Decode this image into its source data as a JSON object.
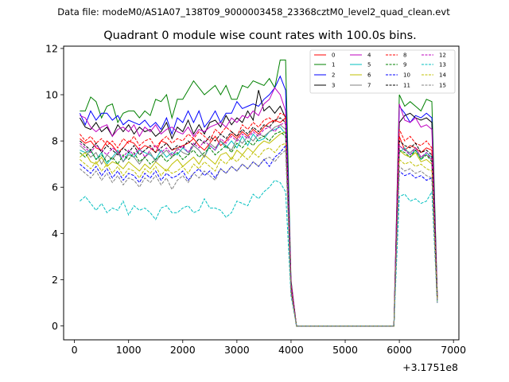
{
  "chart_data": {
    "type": "line",
    "header": "Data file: modeM0/AS1A07_138T09_9000003458_23368cztM0_level2_quad_clean.evt",
    "title": "Quadrant 0 module wise count rates with 100.0s bins.",
    "xlabel": "",
    "ylabel": "",
    "x_offset_label": "+3.1751e8",
    "xlim": [
      -200,
      7100
    ],
    "ylim": [
      -0.6,
      12.1
    ],
    "xticks": [
      0,
      1000,
      2000,
      3000,
      4000,
      5000,
      6000,
      7000
    ],
    "yticks": [
      0,
      2,
      4,
      6,
      8,
      10,
      12
    ],
    "grid": false,
    "legend_position": "top-right",
    "x": [
      100,
      200,
      300,
      400,
      500,
      600,
      700,
      800,
      900,
      1000,
      1100,
      1200,
      1300,
      1400,
      1500,
      1600,
      1700,
      1800,
      1900,
      2000,
      2100,
      2200,
      2300,
      2400,
      2500,
      2600,
      2700,
      2800,
      2900,
      3000,
      3100,
      3200,
      3300,
      3400,
      3500,
      3600,
      3700,
      3800,
      3900,
      4000,
      4100,
      4200,
      4300,
      4400,
      4500,
      4600,
      4700,
      4800,
      4900,
      5000,
      5100,
      5200,
      5300,
      5400,
      5500,
      5600,
      5700,
      5800,
      5900,
      6000,
      6100,
      6200,
      6300,
      6400,
      6500,
      6600,
      6700
    ],
    "series": [
      {
        "name": "0",
        "color": "#ff0000",
        "dash": "solid",
        "values": [
          8.1,
          7.9,
          8.0,
          7.7,
          7.6,
          8.0,
          7.8,
          7.5,
          7.7,
          8.0,
          7.9,
          7.6,
          7.8,
          7.7,
          7.5,
          8.0,
          7.9,
          7.6,
          7.7,
          7.8,
          7.9,
          8.1,
          7.8,
          7.6,
          7.9,
          8.2,
          7.8,
          8.0,
          8.3,
          8.1,
          8.4,
          8.2,
          8.5,
          8.3,
          8.6,
          8.8,
          8.9,
          8.8,
          9.0,
          1.8,
          0.0,
          0.0,
          0.0,
          0.0,
          0.0,
          0.0,
          0.0,
          0.0,
          0.0,
          0.0,
          0.0,
          0.0,
          0.0,
          0.0,
          0.0,
          0.0,
          0.0,
          0.0,
          0.0,
          8.2,
          7.6,
          7.8,
          7.7,
          7.5,
          7.7,
          7.6,
          1.2
        ]
      },
      {
        "name": "1",
        "color": "#008000",
        "dash": "solid",
        "values": [
          9.3,
          9.3,
          9.9,
          9.7,
          9.0,
          9.5,
          9.6,
          8.8,
          9.2,
          9.3,
          9.3,
          9.0,
          9.3,
          9.1,
          9.8,
          9.7,
          10.0,
          9.0,
          9.8,
          9.8,
          10.2,
          10.6,
          10.3,
          10.0,
          10.2,
          10.4,
          10.0,
          10.4,
          9.8,
          9.8,
          10.4,
          10.3,
          10.6,
          10.5,
          10.4,
          10.7,
          10.3,
          11.5,
          11.5,
          2.0,
          0.0,
          0.0,
          0.0,
          0.0,
          0.0,
          0.0,
          0.0,
          0.0,
          0.0,
          0.0,
          0.0,
          0.0,
          0.0,
          0.0,
          0.0,
          0.0,
          0.0,
          0.0,
          0.0,
          10.0,
          9.5,
          9.7,
          9.5,
          9.3,
          9.8,
          9.7,
          1.4
        ]
      },
      {
        "name": "2",
        "color": "#0000ff",
        "dash": "solid",
        "values": [
          9.2,
          8.7,
          9.3,
          8.9,
          9.2,
          9.2,
          8.9,
          9.1,
          8.7,
          8.9,
          8.8,
          8.7,
          8.9,
          8.6,
          8.8,
          8.5,
          9.0,
          8.3,
          9.0,
          8.8,
          9.3,
          8.8,
          9.3,
          8.6,
          8.9,
          9.3,
          8.8,
          9.2,
          9.2,
          9.7,
          9.4,
          9.5,
          9.6,
          9.5,
          9.8,
          10.0,
          10.3,
          10.8,
          10.2,
          1.9,
          0.0,
          0.0,
          0.0,
          0.0,
          0.0,
          0.0,
          0.0,
          0.0,
          0.0,
          0.0,
          0.0,
          0.0,
          0.0,
          0.0,
          0.0,
          0.0,
          0.0,
          0.0,
          0.0,
          9.5,
          9.2,
          8.8,
          9.1,
          9.0,
          9.2,
          9.0,
          1.3
        ]
      },
      {
        "name": "3",
        "color": "#000000",
        "dash": "solid",
        "values": [
          9.0,
          8.6,
          8.5,
          8.8,
          8.4,
          8.6,
          8.2,
          8.7,
          8.4,
          8.7,
          8.3,
          8.6,
          8.4,
          8.5,
          8.2,
          8.4,
          8.8,
          8.1,
          8.6,
          8.4,
          8.9,
          8.3,
          8.7,
          8.3,
          8.8,
          8.9,
          8.6,
          9.1,
          8.7,
          9.0,
          8.8,
          9.3,
          8.9,
          10.2,
          9.3,
          9.5,
          9.2,
          9.5,
          9.0,
          1.8,
          0.0,
          0.0,
          0.0,
          0.0,
          0.0,
          0.0,
          0.0,
          0.0,
          0.0,
          0.0,
          0.0,
          0.0,
          0.0,
          0.0,
          0.0,
          0.0,
          0.0,
          0.0,
          0.0,
          8.8,
          9.1,
          9.2,
          9.0,
          8.9,
          9.0,
          8.8,
          1.2
        ]
      },
      {
        "name": "4",
        "color": "#bf00bf",
        "dash": "solid",
        "values": [
          9.1,
          9.0,
          8.6,
          8.4,
          8.6,
          8.7,
          8.2,
          8.5,
          8.6,
          8.4,
          8.7,
          8.2,
          8.6,
          8.4,
          8.7,
          8.3,
          8.5,
          8.6,
          8.4,
          8.3,
          8.6,
          8.2,
          8.5,
          8.4,
          8.6,
          8.7,
          8.8,
          8.6,
          9.0,
          8.8,
          9.1,
          9.0,
          9.3,
          9.1,
          9.6,
          9.8,
          10.3,
          10.0,
          9.3,
          1.9,
          0.0,
          0.0,
          0.0,
          0.0,
          0.0,
          0.0,
          0.0,
          0.0,
          0.0,
          0.0,
          0.0,
          0.0,
          0.0,
          0.0,
          0.0,
          0.0,
          0.0,
          0.0,
          0.0,
          9.6,
          8.9,
          8.8,
          9.0,
          8.6,
          8.7,
          8.5,
          1.3
        ]
      },
      {
        "name": "5",
        "color": "#00bfbf",
        "dash": "solid",
        "values": [
          7.6,
          7.5,
          7.6,
          7.2,
          7.5,
          7.0,
          7.3,
          7.6,
          7.1,
          7.5,
          7.3,
          7.6,
          7.5,
          7.4,
          7.2,
          7.6,
          7.3,
          7.5,
          7.4,
          7.7,
          7.5,
          7.8,
          7.6,
          7.3,
          7.8,
          7.6,
          8.0,
          7.7,
          8.0,
          7.7,
          8.2,
          7.8,
          8.3,
          8.0,
          8.1,
          8.4,
          8.5,
          8.6,
          8.3,
          1.6,
          0.0,
          0.0,
          0.0,
          0.0,
          0.0,
          0.0,
          0.0,
          0.0,
          0.0,
          0.0,
          0.0,
          0.0,
          0.0,
          0.0,
          0.0,
          0.0,
          0.0,
          0.0,
          0.0,
          7.5,
          7.7,
          7.4,
          7.6,
          7.2,
          7.5,
          7.3,
          1.1
        ]
      },
      {
        "name": "6",
        "color": "#bfbf00",
        "dash": "solid",
        "values": [
          7.3,
          7.5,
          7.1,
          7.0,
          7.3,
          6.9,
          7.1,
          7.0,
          6.8,
          7.1,
          6.9,
          6.7,
          7.0,
          6.8,
          7.1,
          6.9,
          6.7,
          7.0,
          7.2,
          6.9,
          7.1,
          7.3,
          7.0,
          7.4,
          7.2,
          7.0,
          7.4,
          7.5,
          7.2,
          7.6,
          7.4,
          7.7,
          7.5,
          7.8,
          8.0,
          7.9,
          8.1,
          8.3,
          8.4,
          1.6,
          0.0,
          0.0,
          0.0,
          0.0,
          0.0,
          0.0,
          0.0,
          0.0,
          0.0,
          0.0,
          0.0,
          0.0,
          0.0,
          0.0,
          0.0,
          0.0,
          0.0,
          0.0,
          0.0,
          7.6,
          7.4,
          7.3,
          7.5,
          7.1,
          7.2,
          7.0,
          1.2
        ]
      },
      {
        "name": "7",
        "color": "#808080",
        "dash": "solid",
        "values": [
          7.8,
          7.6,
          7.3,
          7.5,
          7.0,
          7.4,
          7.2,
          7.5,
          7.1,
          7.4,
          7.3,
          7.0,
          7.3,
          7.5,
          7.1,
          7.4,
          7.6,
          7.3,
          7.7,
          7.5,
          7.4,
          7.8,
          7.6,
          7.3,
          7.9,
          7.7,
          8.0,
          7.8,
          7.6,
          8.1,
          7.9,
          8.2,
          8.0,
          8.3,
          8.2,
          8.4,
          8.6,
          8.7,
          8.5,
          1.6,
          0.0,
          0.0,
          0.0,
          0.0,
          0.0,
          0.0,
          0.0,
          0.0,
          0.0,
          0.0,
          0.0,
          0.0,
          0.0,
          0.0,
          0.0,
          0.0,
          0.0,
          0.0,
          0.0,
          7.8,
          7.6,
          7.5,
          7.7,
          7.3,
          7.4,
          7.2,
          1.1
        ]
      },
      {
        "name": "8",
        "color": "#ff0000",
        "dash": "dashed",
        "values": [
          8.3,
          8.0,
          8.2,
          7.9,
          8.1,
          7.8,
          8.0,
          7.7,
          8.1,
          7.9,
          8.2,
          7.8,
          8.0,
          8.1,
          7.7,
          8.0,
          8.2,
          7.9,
          8.1,
          8.0,
          8.3,
          8.1,
          8.4,
          8.2,
          8.0,
          8.5,
          8.3,
          8.6,
          8.4,
          8.2,
          8.7,
          8.5,
          8.8,
          8.6,
          8.9,
          9.0,
          8.8,
          9.2,
          9.1,
          1.8,
          0.0,
          0.0,
          0.0,
          0.0,
          0.0,
          0.0,
          0.0,
          0.0,
          0.0,
          0.0,
          0.0,
          0.0,
          0.0,
          0.0,
          0.0,
          0.0,
          0.0,
          0.0,
          0.0,
          8.5,
          8.0,
          8.2,
          7.9,
          7.8,
          8.0,
          7.7,
          1.2
        ]
      },
      {
        "name": "9",
        "color": "#008000",
        "dash": "dashed",
        "values": [
          7.5,
          7.3,
          7.6,
          7.2,
          7.4,
          7.1,
          7.3,
          7.0,
          7.4,
          7.2,
          7.5,
          7.1,
          7.3,
          7.0,
          7.2,
          7.4,
          7.1,
          7.3,
          7.5,
          7.2,
          7.4,
          7.6,
          7.3,
          7.5,
          7.7,
          7.4,
          7.6,
          7.8,
          7.5,
          7.9,
          7.7,
          8.0,
          7.8,
          8.1,
          8.2,
          8.0,
          8.3,
          8.4,
          8.2,
          1.6,
          0.0,
          0.0,
          0.0,
          0.0,
          0.0,
          0.0,
          0.0,
          0.0,
          0.0,
          0.0,
          0.0,
          0.0,
          0.0,
          0.0,
          0.0,
          0.0,
          0.0,
          0.0,
          0.0,
          7.6,
          7.5,
          7.3,
          7.6,
          7.2,
          7.4,
          7.1,
          1.1
        ]
      },
      {
        "name": "10",
        "color": "#0000ff",
        "dash": "dashed",
        "values": [
          7.0,
          6.8,
          6.6,
          6.9,
          6.5,
          6.8,
          6.4,
          6.7,
          6.3,
          6.6,
          6.5,
          6.2,
          6.6,
          6.4,
          6.7,
          6.3,
          6.6,
          6.4,
          6.5,
          6.7,
          6.3,
          6.6,
          6.8,
          6.5,
          6.7,
          6.4,
          6.8,
          6.6,
          6.9,
          6.7,
          7.0,
          6.8,
          7.1,
          6.9,
          7.2,
          6.9,
          7.3,
          7.5,
          7.8,
          1.5,
          0.0,
          0.0,
          0.0,
          0.0,
          0.0,
          0.0,
          0.0,
          0.0,
          0.0,
          0.0,
          0.0,
          0.0,
          0.0,
          0.0,
          0.0,
          0.0,
          0.0,
          0.0,
          0.0,
          6.7,
          6.5,
          6.6,
          6.4,
          6.5,
          6.3,
          6.4,
          1.0
        ]
      },
      {
        "name": "11",
        "color": "#000000",
        "dash": "dashed",
        "values": [
          8.0,
          7.8,
          7.6,
          7.9,
          7.5,
          7.8,
          7.6,
          7.4,
          7.7,
          7.5,
          7.8,
          7.4,
          7.6,
          7.8,
          7.5,
          7.7,
          7.9,
          7.6,
          7.8,
          7.7,
          8.0,
          7.8,
          8.1,
          7.9,
          8.2,
          8.0,
          8.3,
          8.1,
          8.4,
          8.2,
          8.5,
          8.3,
          8.6,
          8.4,
          8.7,
          8.6,
          8.9,
          9.0,
          8.8,
          1.7,
          0.0,
          0.0,
          0.0,
          0.0,
          0.0,
          0.0,
          0.0,
          0.0,
          0.0,
          0.0,
          0.0,
          0.0,
          0.0,
          0.0,
          0.0,
          0.0,
          0.0,
          0.0,
          0.0,
          8.0,
          7.8,
          7.7,
          7.9,
          7.5,
          7.6,
          7.4,
          1.2
        ]
      },
      {
        "name": "12",
        "color": "#bf00bf",
        "dash": "dashed",
        "values": [
          7.9,
          7.7,
          7.5,
          7.8,
          7.6,
          7.4,
          7.7,
          7.5,
          7.3,
          7.6,
          7.4,
          7.7,
          7.3,
          7.6,
          7.8,
          7.5,
          7.7,
          7.4,
          7.6,
          7.8,
          7.5,
          7.9,
          7.7,
          8.0,
          7.8,
          7.6,
          8.1,
          7.9,
          8.2,
          8.0,
          8.3,
          8.1,
          8.4,
          8.2,
          8.5,
          8.6,
          8.4,
          8.7,
          8.8,
          1.7,
          0.0,
          0.0,
          0.0,
          0.0,
          0.0,
          0.0,
          0.0,
          0.0,
          0.0,
          0.0,
          0.0,
          0.0,
          0.0,
          0.0,
          0.0,
          0.0,
          0.0,
          0.0,
          0.0,
          7.8,
          7.6,
          7.4,
          7.7,
          7.3,
          7.5,
          7.2,
          1.1
        ]
      },
      {
        "name": "13",
        "color": "#00bfbf",
        "dash": "dashed",
        "values": [
          5.4,
          5.6,
          5.3,
          5.0,
          5.3,
          4.9,
          5.1,
          5.0,
          5.4,
          4.8,
          5.2,
          5.0,
          5.1,
          4.9,
          4.6,
          5.1,
          5.2,
          4.9,
          4.9,
          5.1,
          5.2,
          4.9,
          5.0,
          5.5,
          5.1,
          5.1,
          5.0,
          4.7,
          4.9,
          5.4,
          5.3,
          5.2,
          5.7,
          5.5,
          5.8,
          6.0,
          6.3,
          6.2,
          5.8,
          1.3,
          0.0,
          0.0,
          0.0,
          0.0,
          0.0,
          0.0,
          0.0,
          0.0,
          0.0,
          0.0,
          0.0,
          0.0,
          0.0,
          0.0,
          0.0,
          0.0,
          0.0,
          0.0,
          0.0,
          5.6,
          5.7,
          5.4,
          5.5,
          5.3,
          5.4,
          5.8,
          1.0
        ]
      },
      {
        "name": "14",
        "color": "#bfbf00",
        "dash": "dashed",
        "values": [
          7.2,
          7.0,
          6.8,
          7.1,
          6.7,
          7.0,
          6.6,
          6.9,
          6.5,
          6.8,
          6.7,
          6.4,
          6.8,
          6.6,
          6.9,
          6.5,
          6.8,
          6.6,
          6.7,
          6.9,
          6.6,
          7.0,
          6.8,
          7.1,
          6.9,
          6.7,
          7.2,
          7.0,
          7.3,
          7.1,
          7.4,
          7.2,
          7.5,
          7.3,
          7.6,
          7.7,
          7.5,
          7.8,
          7.9,
          1.5,
          0.0,
          0.0,
          0.0,
          0.0,
          0.0,
          0.0,
          0.0,
          0.0,
          0.0,
          0.0,
          0.0,
          0.0,
          0.0,
          0.0,
          0.0,
          0.0,
          0.0,
          0.0,
          0.0,
          7.2,
          7.0,
          7.1,
          6.9,
          7.0,
          6.8,
          6.7,
          1.1
        ]
      },
      {
        "name": "15",
        "color": "#808080",
        "dash": "dashed",
        "values": [
          6.8,
          6.6,
          6.4,
          6.7,
          6.3,
          6.6,
          6.2,
          6.5,
          6.1,
          6.4,
          6.3,
          6.0,
          6.4,
          6.2,
          6.5,
          6.1,
          6.4,
          5.9,
          6.3,
          6.5,
          6.2,
          6.6,
          6.4,
          6.7,
          6.5,
          6.3,
          6.8,
          6.6,
          6.9,
          6.7,
          7.0,
          6.8,
          7.1,
          6.9,
          7.2,
          7.3,
          7.1,
          7.4,
          7.6,
          1.4,
          0.0,
          0.0,
          0.0,
          0.0,
          0.0,
          0.0,
          0.0,
          0.0,
          0.0,
          0.0,
          0.0,
          0.0,
          0.0,
          0.0,
          0.0,
          0.0,
          0.0,
          0.0,
          0.0,
          6.9,
          6.7,
          6.8,
          6.6,
          6.7,
          6.5,
          6.4,
          1.0
        ]
      }
    ]
  }
}
